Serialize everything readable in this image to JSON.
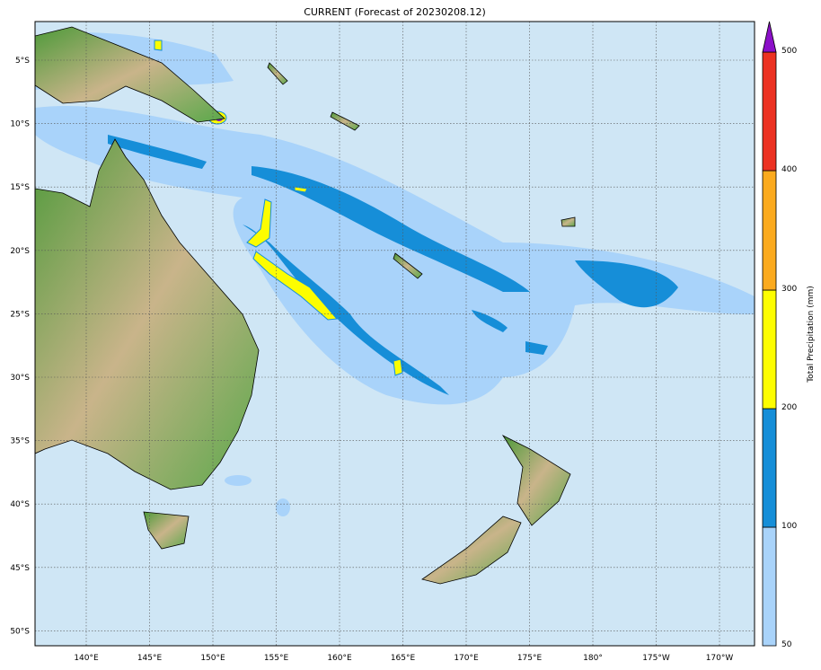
{
  "title": "CURRENT (Forecast of 20230208.12)",
  "map": {
    "lon_labels": [
      "140°E",
      "145°E",
      "150°E",
      "155°E",
      "160°E",
      "165°E",
      "170°E",
      "175°E",
      "180°",
      "175°W",
      "170°W"
    ],
    "lat_labels": [
      "5°S",
      "10°S",
      "15°S",
      "20°S",
      "25°S",
      "30°S",
      "35°S",
      "40°S",
      "45°S",
      "50°S"
    ],
    "ocean_color": "#cfe6f5",
    "gridlines": true
  },
  "colorbar": {
    "title": "Total Precipitation (mm)",
    "ticks": [
      "50",
      "100",
      "200",
      "300",
      "400",
      "500"
    ],
    "colors": [
      "#a9d3fa",
      "#168ed8",
      "#fdfd00",
      "#fbaa1e",
      "#ec3222",
      "#8b10c8"
    ],
    "extend": "max"
  }
}
